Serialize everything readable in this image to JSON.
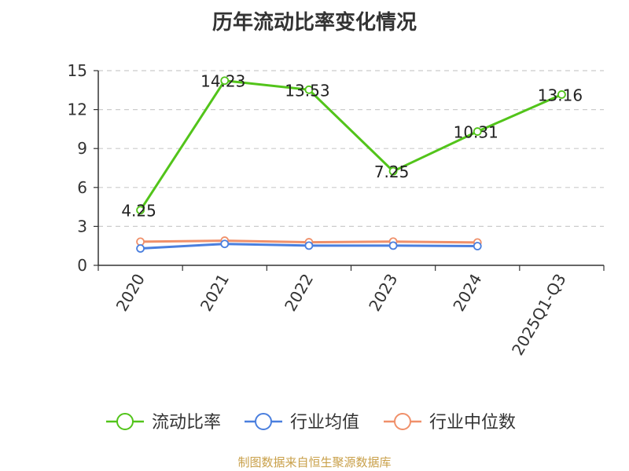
{
  "chart_data": {
    "type": "line",
    "title": "历年流动比率变化情况",
    "categories": [
      "2020",
      "2021",
      "2022",
      "2023",
      "2024",
      "2025Q1-Q3"
    ],
    "ylim": [
      0,
      15
    ],
    "yticks": [
      0,
      3,
      6,
      9,
      12,
      15
    ],
    "grid": "horizontal-dashed",
    "legend_position": "bottom",
    "series": [
      {
        "name": "流动比率",
        "color": "#52c41a",
        "values": [
          4.25,
          14.23,
          13.53,
          7.25,
          10.31,
          13.16
        ],
        "labels": [
          "4.25",
          "14.23",
          "13.53",
          "7.25",
          "10.31",
          "13.16"
        ]
      },
      {
        "name": "行业均值",
        "color": "#4a7fde",
        "values": [
          1.3,
          1.65,
          1.52,
          1.52,
          1.48,
          null
        ]
      },
      {
        "name": "行业中位数",
        "color": "#f0906a",
        "values": [
          1.82,
          1.9,
          1.78,
          1.83,
          1.76,
          null
        ]
      }
    ]
  },
  "footer": "制图数据来自恒生聚源数据库"
}
